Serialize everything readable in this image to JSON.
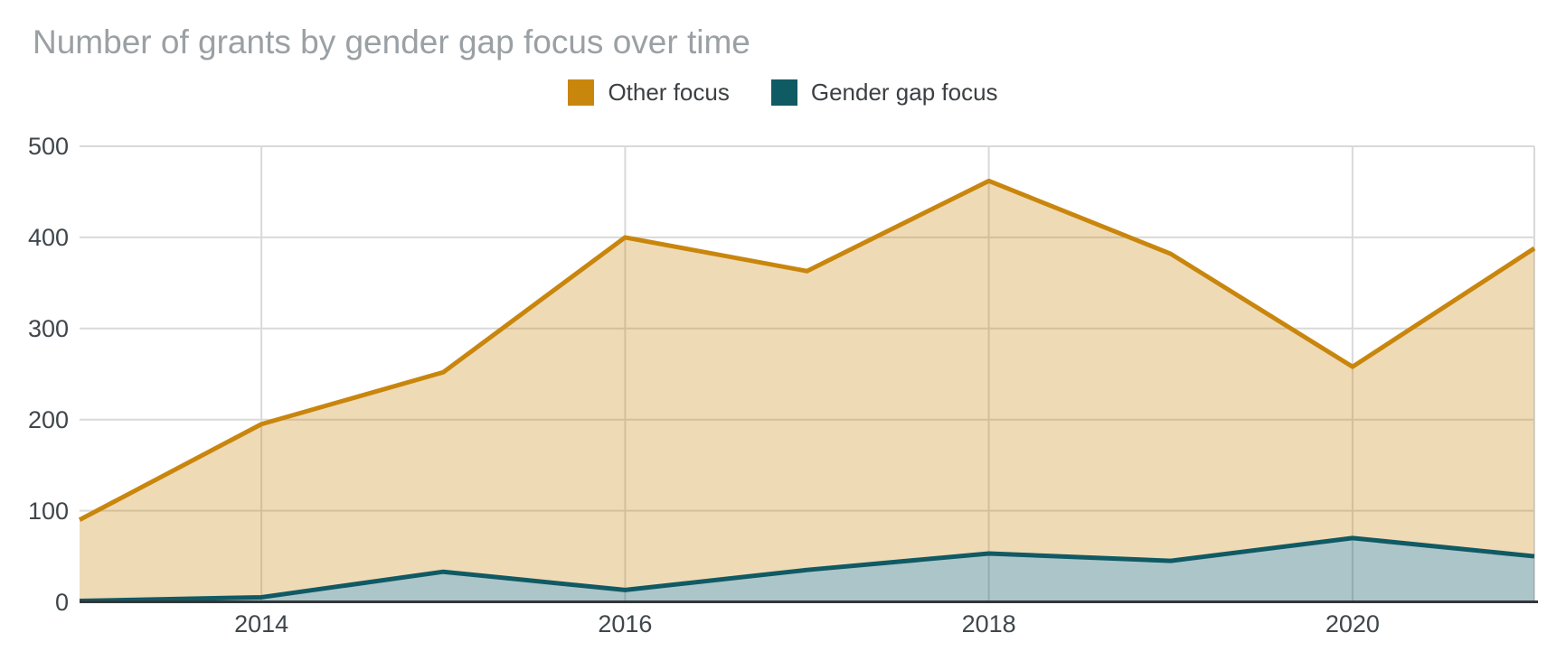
{
  "title": "Number of grants by gender gap focus over time",
  "legend": {
    "items": [
      {
        "label": "Other focus",
        "color": "#c9860d"
      },
      {
        "label": "Gender gap focus",
        "color": "#105a64"
      }
    ]
  },
  "chart_data": {
    "type": "area",
    "title": "Number of grants by gender gap focus over time",
    "x": [
      2013,
      2014,
      2015,
      2016,
      2017,
      2018,
      2019,
      2020,
      2021
    ],
    "series": [
      {
        "name": "Other focus",
        "line_color": "#c9860d",
        "fill_color": "#c9860d",
        "fill_opacity": 0.3,
        "values": [
          90,
          195,
          252,
          400,
          363,
          462,
          382,
          258,
          388
        ]
      },
      {
        "name": "Gender gap focus",
        "line_color": "#105a64",
        "fill_color": "#105a64",
        "fill_opacity": 0.35,
        "values": [
          1,
          5,
          33,
          13,
          35,
          53,
          45,
          70,
          50
        ]
      }
    ],
    "xlabel": "",
    "ylabel": "",
    "ylim": [
      0,
      500
    ],
    "yticks": [
      0,
      100,
      200,
      300,
      400,
      500
    ],
    "xticks": [
      2014,
      2016,
      2018,
      2020
    ],
    "grid": true,
    "legend_position": "top",
    "area_rendering": "banded (orange band sits on top of teal line; teal fills to zero)"
  },
  "colors": {
    "background": "#ffffff",
    "title_text": "#9aa0a4",
    "tick_text": "#3f474c",
    "legend_text": "#3c4043",
    "gridline": "#d9d9d9",
    "baseline_axis": "#333638"
  }
}
